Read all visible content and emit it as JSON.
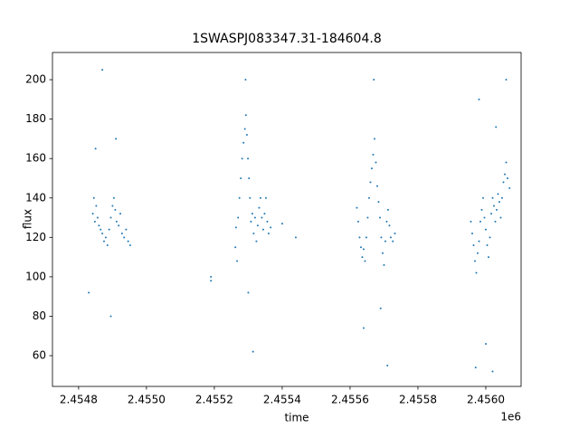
{
  "chart_data": {
    "type": "scatter",
    "title": "1SWASPJ083347.31-184604.8",
    "x_label": "time",
    "y_label": "flux",
    "x_offset_label": "1e6",
    "series": [
      {
        "color": "#1f77b4",
        "x": [
          2454842,
          2454845,
          2454848,
          2454852,
          2454856,
          2454860,
          2454865,
          2454870,
          2454875,
          2454880,
          2454885,
          2454890,
          2454895,
          2454900,
          2454904,
          2454908,
          2454912,
          2454918,
          2454923,
          2454928,
          2454934,
          2454940,
          2454946,
          2454952,
          2454895,
          2454850,
          2454910,
          2454830,
          2454870,
          2455190,
          2455190,
          2455262,
          2455264,
          2455267,
          2455270,
          2455274,
          2455278,
          2455282,
          2455286,
          2455290,
          2455293,
          2455296,
          2455299,
          2455302,
          2455305,
          2455308,
          2455312,
          2455316,
          2455320,
          2455324,
          2455328,
          2455332,
          2455336,
          2455340,
          2455344,
          2455348,
          2455352,
          2455356,
          2455360,
          2455366,
          2455292,
          2455300,
          2455314,
          2455400,
          2455440,
          2455620,
          2455624,
          2455628,
          2455632,
          2455636,
          2455640,
          2455644,
          2455648,
          2455652,
          2455656,
          2455660,
          2455664,
          2455668,
          2455672,
          2455676,
          2455680,
          2455684,
          2455688,
          2455692,
          2455696,
          2455700,
          2455704,
          2455708,
          2455712,
          2455716,
          2455720,
          2455726,
          2455732,
          2455670,
          2455640,
          2455710,
          2455690,
          2455956,
          2455960,
          2455964,
          2455968,
          2455972,
          2455976,
          2455980,
          2455984,
          2455988,
          2455992,
          2455996,
          2456000,
          2456004,
          2456008,
          2456012,
          2456016,
          2456020,
          2456024,
          2456028,
          2456032,
          2456036,
          2456040,
          2456044,
          2456048,
          2456052,
          2456056,
          2456060,
          2456064,
          2456070,
          2455980,
          2455970,
          2456000,
          2456030,
          2456060,
          2456020
        ],
        "values": [
          132,
          140,
          128,
          136,
          130,
          126,
          124,
          122,
          118,
          120,
          116,
          124,
          130,
          136,
          140,
          134,
          128,
          126,
          132,
          122,
          120,
          124,
          118,
          116,
          80,
          165,
          170,
          92,
          205,
          100,
          98,
          115,
          125,
          108,
          130,
          140,
          150,
          160,
          168,
          175,
          182,
          172,
          160,
          150,
          140,
          128,
          132,
          122,
          130,
          118,
          126,
          135,
          140,
          130,
          124,
          132,
          140,
          128,
          122,
          125,
          200,
          92,
          62,
          127,
          120,
          135,
          128,
          120,
          115,
          110,
          114,
          108,
          120,
          130,
          140,
          148,
          155,
          162,
          170,
          158,
          146,
          138,
          130,
          120,
          112,
          106,
          118,
          128,
          134,
          126,
          120,
          118,
          122,
          200,
          74,
          55,
          84,
          128,
          122,
          116,
          108,
          102,
          112,
          118,
          128,
          134,
          140,
          130,
          124,
          116,
          110,
          120,
          132,
          140,
          136,
          128,
          134,
          142,
          138,
          130,
          140,
          148,
          152,
          158,
          150,
          145,
          190,
          54,
          66,
          176,
          200,
          52
        ]
      }
    ],
    "xlim": [
      2454723,
      2456104
    ],
    "ylim": [
      44.4,
      213.8
    ],
    "xticks": [
      {
        "value": 2454800,
        "label": "2.4548"
      },
      {
        "value": 2455000,
        "label": "2.4550"
      },
      {
        "value": 2455200,
        "label": "2.4552"
      },
      {
        "value": 2455400,
        "label": "2.4554"
      },
      {
        "value": 2455600,
        "label": "2.4556"
      },
      {
        "value": 2455800,
        "label": "2.4558"
      },
      {
        "value": 2456000,
        "label": "2.4560"
      }
    ],
    "yticks": [
      60,
      80,
      100,
      120,
      140,
      160,
      180,
      200
    ]
  }
}
